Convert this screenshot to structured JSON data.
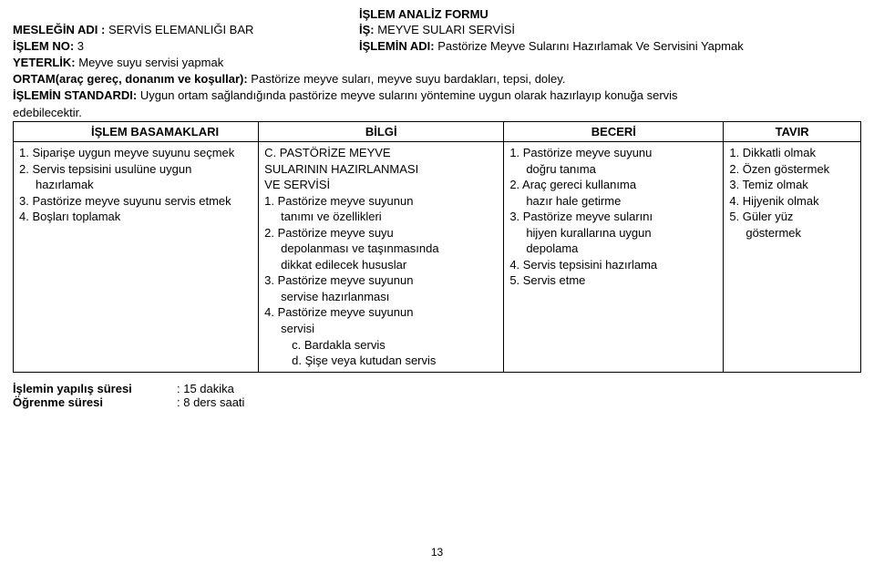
{
  "title": "İŞLEM ANALİZ FORMU",
  "header": {
    "meslek_label": "MESLEĞİN ADI  :",
    "meslek_value": "SERVİS ELEMANLIĞI BAR",
    "is_label": "İŞ:",
    "is_value": "MEYVE SULARI SERVİSİ",
    "islem_no_label": "İŞLEM NO:",
    "islem_no_value": "3",
    "islem_adi_label": "İŞLEMİN ADI:",
    "islem_adi_value": "Pastörize Meyve Sularını Hazırlamak Ve Servisini Yapmak",
    "yeterlik_label": "YETERLİK:",
    "yeterlik_value": "Meyve suyu servisi yapmak",
    "ortam_label": "ORTAM(araç gereç, donanım ve koşullar):",
    "ortam_value": "Pastörize meyve suları, meyve suyu bardakları, tepsi, doley.",
    "standard_label": "İŞLEMİN STANDARDI:",
    "standard_value": "Uygun ortam sağlandığında pastörize meyve sularını yöntemine uygun olarak hazırlayıp konuğa servis",
    "standard_cont": "edebilecektir."
  },
  "table": {
    "headers": {
      "c1": "İŞLEM BASAMAKLARI",
      "c2": "BİLGİ",
      "c3": "BECERİ",
      "c4": "TAVIR"
    },
    "col1": [
      "1.  Siparişe uygun meyve suyunu seçmek",
      "2.  Servis tepsisini usulüne uygun",
      "    hazırlamak",
      "3.  Pastörize meyve suyunu servis etmek",
      "4.  Boşları toplamak"
    ],
    "col2": {
      "heading1": "C. PASTÖRİZE MEYVE",
      "heading2": "SULARININ HAZIRLANMASI",
      "heading3": "VE SERVİSİ",
      "items": [
        "1. Pastörize meyve suyunun",
        "   tanımı ve özellikleri",
        "2. Pastörize meyve suyu",
        "   depolanması ve taşınmasında",
        "   dikkat edilecek hususlar",
        "3. Pastörize meyve suyunun",
        "   servise hazırlanması",
        "4. Pastörize meyve suyunun",
        "   servisi",
        "     c. Bardakla servis",
        "     d. Şişe veya kutudan servis"
      ]
    },
    "col3": [
      "1.  Pastörize meyve suyunu",
      "    doğru tanıma",
      "2.  Araç gereci kullanıma",
      "    hazır hale getirme",
      "3.  Pastörize meyve sularını",
      "    hijyen kurallarına uygun",
      "    depolama",
      "4.  Servis tepsisini hazırlama",
      "5.  Servis etme"
    ],
    "col4": [
      "1. Dikkatli olmak",
      "2. Özen göstermek",
      "3. Temiz olmak",
      "4. Hijyenik olmak",
      "5. Güler yüz",
      "   göstermek"
    ]
  },
  "footer": {
    "sure_label": "İşlemin yapılış süresi",
    "sure_value": ": 15 dakika",
    "ogren_label": "Öğrenme süresi",
    "ogren_value": ": 8 ders saati"
  },
  "page_number": "13"
}
